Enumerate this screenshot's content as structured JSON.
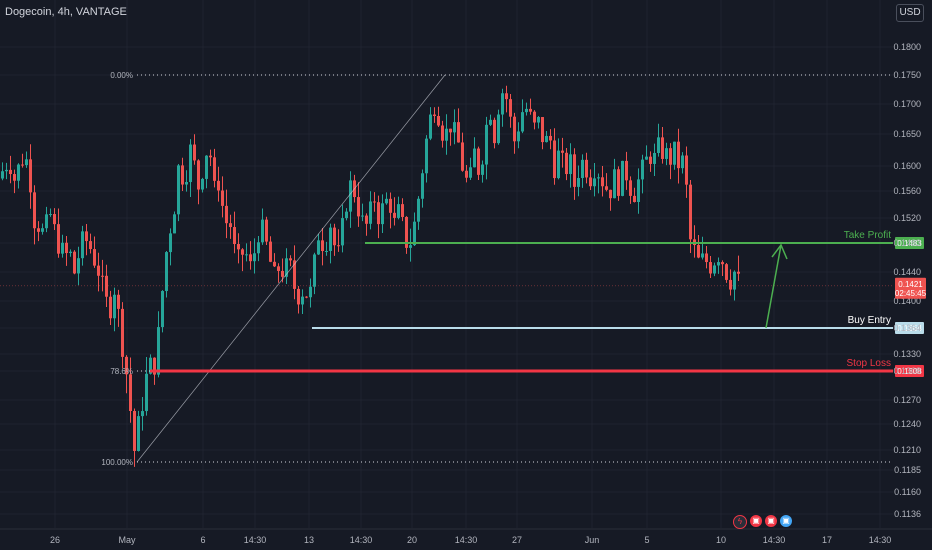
{
  "header": {
    "title": "Dogecoin, 4h, VANTAGE"
  },
  "currency_button": "USD",
  "colors": {
    "up": "#26a69a",
    "down": "#ef5350",
    "background": "#161a25",
    "take_profit": "#4caf50",
    "buy_entry": "#b9dcea",
    "stop_loss": "#f23645"
  },
  "chart_data": {
    "type": "candlestick",
    "symbol": "Dogecoin",
    "interval": "4h",
    "exchange": "VANTAGE",
    "y_ticks": [
      "0.1800",
      "0.1750",
      "0.1700",
      "0.1650",
      "0.1600",
      "0.1560",
      "0.1520",
      "0.1483",
      "0.1440",
      "0.1400",
      "0.1364",
      "0.1330",
      "0.1308",
      "0.1270",
      "0.1240",
      "0.1210",
      "0.1185",
      "0.1160",
      "0.1136"
    ],
    "x_ticks": [
      "26",
      "May",
      "6",
      "14:30",
      "13",
      "14:30",
      "20",
      "14:30",
      "27",
      "Jun",
      "5",
      "10",
      "14:30",
      "17",
      "14:30"
    ],
    "price_path": [
      [
        0,
        0.158
      ],
      [
        5,
        0.16
      ],
      [
        10,
        0.161
      ],
      [
        15,
        0.158
      ],
      [
        20,
        0.16
      ],
      [
        25,
        0.162
      ],
      [
        30,
        0.159
      ],
      [
        35,
        0.152
      ],
      [
        40,
        0.151
      ],
      [
        45,
        0.149
      ],
      [
        50,
        0.153
      ],
      [
        55,
        0.15
      ],
      [
        60,
        0.148
      ],
      [
        65,
        0.146
      ],
      [
        70,
        0.147
      ],
      [
        75,
        0.144
      ],
      [
        80,
        0.147
      ],
      [
        85,
        0.149
      ],
      [
        90,
        0.148
      ],
      [
        95,
        0.146
      ],
      [
        100,
        0.144
      ],
      [
        105,
        0.14
      ],
      [
        110,
        0.139
      ],
      [
        115,
        0.142
      ],
      [
        120,
        0.137
      ],
      [
        125,
        0.133
      ],
      [
        130,
        0.127
      ],
      [
        135,
        0.121
      ],
      [
        140,
        0.124
      ],
      [
        145,
        0.129
      ],
      [
        150,
        0.131
      ],
      [
        155,
        0.132
      ],
      [
        160,
        0.136
      ],
      [
        165,
        0.145
      ],
      [
        170,
        0.15
      ],
      [
        175,
        0.154
      ],
      [
        180,
        0.161
      ],
      [
        185,
        0.157
      ],
      [
        190,
        0.163
      ],
      [
        195,
        0.16
      ],
      [
        200,
        0.156
      ],
      [
        205,
        0.162
      ],
      [
        210,
        0.163
      ],
      [
        215,
        0.156
      ],
      [
        220,
        0.158
      ],
      [
        225,
        0.151
      ],
      [
        230,
        0.152
      ],
      [
        235,
        0.147
      ],
      [
        240,
        0.145
      ],
      [
        245,
        0.148
      ],
      [
        250,
        0.144
      ],
      [
        255,
        0.147
      ],
      [
        260,
        0.151
      ],
      [
        265,
        0.149
      ],
      [
        270,
        0.146
      ],
      [
        275,
        0.143
      ],
      [
        280,
        0.145
      ],
      [
        285,
        0.144
      ],
      [
        290,
        0.145
      ],
      [
        295,
        0.142
      ],
      [
        300,
        0.141
      ],
      [
        305,
        0.142
      ],
      [
        310,
        0.14
      ],
      [
        315,
        0.145
      ],
      [
        320,
        0.151
      ],
      [
        325,
        0.147
      ],
      [
        330,
        0.152
      ],
      [
        335,
        0.148
      ],
      [
        340,
        0.146
      ],
      [
        345,
        0.153
      ],
      [
        350,
        0.157
      ],
      [
        355,
        0.156
      ],
      [
        360,
        0.153
      ],
      [
        365,
        0.15
      ],
      [
        370,
        0.152
      ],
      [
        375,
        0.155
      ],
      [
        380,
        0.152
      ],
      [
        385,
        0.154
      ],
      [
        390,
        0.155
      ],
      [
        395,
        0.151
      ],
      [
        400,
        0.153
      ],
      [
        405,
        0.149
      ],
      [
        410,
        0.148
      ],
      [
        415,
        0.151
      ],
      [
        420,
        0.156
      ],
      [
        425,
        0.162
      ],
      [
        430,
        0.167
      ],
      [
        435,
        0.17
      ],
      [
        440,
        0.168
      ],
      [
        445,
        0.164
      ],
      [
        450,
        0.167
      ],
      [
        455,
        0.165
      ],
      [
        460,
        0.163
      ],
      [
        465,
        0.158
      ],
      [
        470,
        0.157
      ],
      [
        475,
        0.162
      ],
      [
        480,
        0.159
      ],
      [
        485,
        0.164
      ],
      [
        490,
        0.17
      ],
      [
        495,
        0.165
      ],
      [
        500,
        0.171
      ],
      [
        505,
        0.173
      ],
      [
        510,
        0.168
      ],
      [
        515,
        0.164
      ],
      [
        520,
        0.167
      ],
      [
        525,
        0.17
      ],
      [
        530,
        0.168
      ],
      [
        535,
        0.166
      ],
      [
        540,
        0.167
      ],
      [
        545,
        0.163
      ],
      [
        550,
        0.165
      ],
      [
        555,
        0.16
      ],
      [
        560,
        0.162
      ],
      [
        565,
        0.159
      ],
      [
        570,
        0.161
      ],
      [
        575,
        0.157
      ],
      [
        580,
        0.16
      ],
      [
        585,
        0.161
      ],
      [
        590,
        0.158
      ],
      [
        595,
        0.16
      ],
      [
        600,
        0.159
      ],
      [
        605,
        0.157
      ],
      [
        610,
        0.156
      ],
      [
        615,
        0.158
      ],
      [
        620,
        0.157
      ],
      [
        625,
        0.16
      ],
      [
        630,
        0.157
      ],
      [
        635,
        0.156
      ],
      [
        640,
        0.158
      ],
      [
        645,
        0.16
      ],
      [
        650,
        0.162
      ],
      [
        655,
        0.161
      ],
      [
        660,
        0.163
      ],
      [
        665,
        0.162
      ],
      [
        670,
        0.161
      ],
      [
        675,
        0.162
      ],
      [
        680,
        0.16
      ],
      [
        685,
        0.161
      ],
      [
        690,
        0.149
      ],
      [
        695,
        0.147
      ],
      [
        700,
        0.145
      ],
      [
        705,
        0.146
      ],
      [
        710,
        0.145
      ],
      [
        715,
        0.146
      ],
      [
        720,
        0.147
      ],
      [
        725,
        0.145
      ],
      [
        730,
        0.143
      ],
      [
        735,
        0.144
      ],
      [
        740,
        0.142
      ]
    ],
    "fibonacci": [
      {
        "label": "0.00%",
        "price": 0.175
      },
      {
        "label": "78.6%",
        "price": 0.1308
      },
      {
        "label": "100.00%",
        "price": 0.1195
      }
    ],
    "levels": [
      {
        "name": "Take Profit",
        "price": "0.1483",
        "color": "#4caf50"
      },
      {
        "name": "Buy Entry",
        "price": "0.1364",
        "color": "#b9dcea"
      },
      {
        "name": "Stop Loss",
        "price": "0.1308",
        "color": "#f23645"
      }
    ],
    "current_price": {
      "price": "0.1421",
      "countdown": "02:45:45"
    }
  },
  "bottom_icons": [
    "lightning-icon",
    "flag-icon-1",
    "flag-icon-2",
    "flag-icon-3"
  ]
}
